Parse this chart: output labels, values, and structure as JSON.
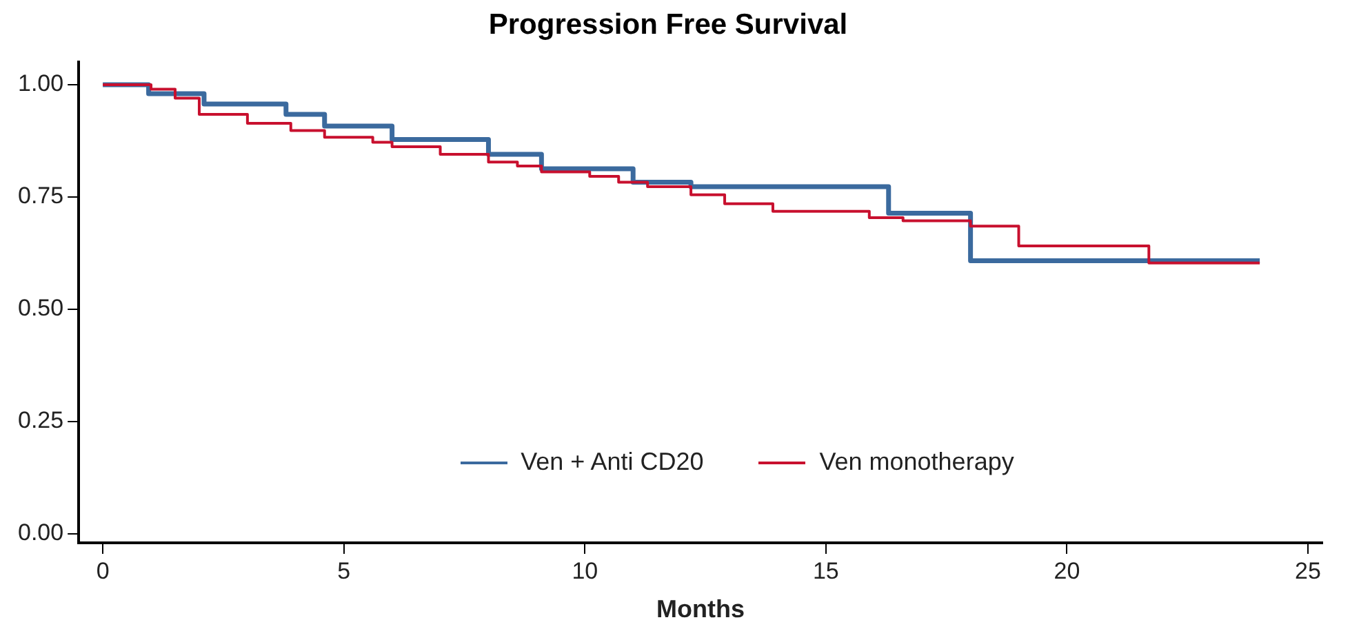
{
  "chart_data": {
    "type": "step",
    "title": "Progression Free Survival",
    "xlabel": "Months",
    "xlim": [
      -0.5,
      25.3
    ],
    "ylim": [
      -0.02,
      1.05
    ],
    "xticks": [
      0,
      5,
      10,
      15,
      20,
      25
    ],
    "yticks": [
      {
        "value": 0,
        "label": "0.00"
      },
      {
        "value": 0.25,
        "label": "0.25"
      },
      {
        "value": 0.5,
        "label": "0.50"
      },
      {
        "value": 0.75,
        "label": "0.75"
      },
      {
        "value": 1,
        "label": "1.00"
      }
    ],
    "grid": false,
    "legend": "bottom",
    "series": [
      {
        "name": "Ven + Anti CD20",
        "color": "#3b6a9e",
        "x": [
          0,
          0.95,
          2.1,
          3.8,
          4.6,
          6.0,
          8.0,
          9.1,
          11.0,
          12.2,
          16.3,
          18.0,
          24.0
        ],
        "values": [
          1.0,
          0.98,
          0.957,
          0.934,
          0.908,
          0.878,
          0.845,
          0.813,
          0.783,
          0.773,
          0.714,
          0.608,
          0.608
        ]
      },
      {
        "name": "Ven monotherapy",
        "color": "#c8102e",
        "x": [
          0,
          1.0,
          1.5,
          2.0,
          3.0,
          3.9,
          4.6,
          5.6,
          6.0,
          7.0,
          8.0,
          8.6,
          9.1,
          10.1,
          10.7,
          11.3,
          12.2,
          12.9,
          13.9,
          15.9,
          16.6,
          18.0,
          19.0,
          21.7,
          24.0
        ],
        "values": [
          1.0,
          0.99,
          0.97,
          0.934,
          0.914,
          0.898,
          0.883,
          0.872,
          0.862,
          0.845,
          0.828,
          0.819,
          0.806,
          0.796,
          0.783,
          0.773,
          0.755,
          0.735,
          0.718,
          0.704,
          0.697,
          0.685,
          0.641,
          0.603,
          0.603
        ]
      }
    ]
  }
}
